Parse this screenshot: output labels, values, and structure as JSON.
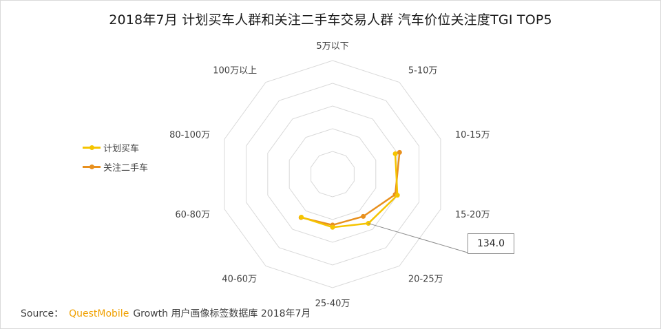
{
  "title": "2018年7月 计划买车人群和关注二手车交易人群 汽车价位关注度TGI TOP5",
  "callout_value": "134.0",
  "source": {
    "prefix": "Source：",
    "brand": "QuestMobile",
    "suffix": "Growth 用户画像标签数据库 2018年7月"
  },
  "colors": {
    "series1": "#f5c400",
    "series2": "#e8901e",
    "grid": "#d9d9d9"
  },
  "chart_data": {
    "type": "radar",
    "categories": [
      "5万以下",
      "5-10万",
      "10-15万",
      "15-20万",
      "20-25万",
      "25-40万",
      "40-60万",
      "60-80万",
      "80-100万",
      "100万以上"
    ],
    "range": [
      0,
      250
    ],
    "rings": 5,
    "series": [
      {
        "name": "计划买车",
        "values": [
          null,
          null,
          145,
          150,
          134,
          117,
          117,
          null,
          null,
          null
        ]
      },
      {
        "name": "关注二手车",
        "values": [
          null,
          null,
          155,
          145,
          115,
          112,
          118,
          null,
          null,
          null
        ]
      }
    ],
    "highlight": {
      "series": 0,
      "category": "20-25万",
      "value": 134.0
    }
  }
}
